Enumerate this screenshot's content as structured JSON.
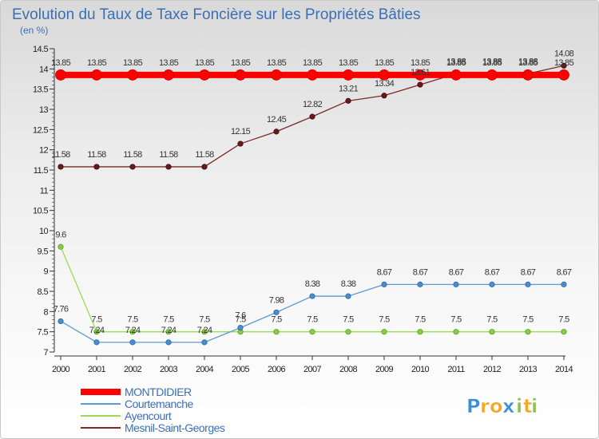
{
  "chart_data": {
    "type": "line",
    "title": "Evolution du Taux de Taxe Foncière sur les Propriétés Bâties",
    "unit_label": "(en %)",
    "xlabel": "",
    "ylabel": "",
    "ylim": [
      7,
      14.5
    ],
    "y_ticks": [
      "7",
      "7.5",
      "8",
      "8.5",
      "9",
      "9.5",
      "10",
      "10.5",
      "11",
      "11.5",
      "12",
      "12.5",
      "13",
      "13.5",
      "14",
      "14.5"
    ],
    "x": [
      "2000",
      "2001",
      "2002",
      "2003",
      "2004",
      "2005",
      "2006",
      "2007",
      "2008",
      "2009",
      "2010",
      "2011",
      "2012",
      "2013",
      "2014"
    ],
    "grid": false,
    "series": [
      {
        "name": "MONTDIDIER",
        "color": "#ff0000",
        "values": [
          13.85,
          13.85,
          13.85,
          13.85,
          13.85,
          13.85,
          13.85,
          13.85,
          13.85,
          13.85,
          13.85,
          13.85,
          13.85,
          13.85,
          13.85
        ],
        "labels": [
          "13.85",
          "13.85",
          "13.85",
          "13.85",
          "13.85",
          "13.85",
          "13.85",
          "13.85",
          "13.85",
          "13.85",
          "13.85",
          "13.85",
          "13.85",
          "13.85",
          "13.85"
        ]
      },
      {
        "name": "Courtemanche",
        "color": "#5a9bd5",
        "values": [
          7.76,
          7.24,
          7.24,
          7.24,
          7.24,
          7.6,
          7.98,
          8.38,
          8.38,
          8.67,
          8.67,
          8.67,
          8.67,
          8.67,
          8.67
        ],
        "labels": [
          "7.76",
          "7.24",
          "7.24",
          "7.24",
          "7.24",
          "7.6",
          "7.98",
          "8.38",
          "8.38",
          "8.67",
          "8.67",
          "8.67",
          "8.67",
          "8.67",
          "8.67"
        ]
      },
      {
        "name": "Ayencourt",
        "color": "#99dd55",
        "values": [
          9.6,
          7.5,
          7.5,
          7.5,
          7.5,
          7.5,
          7.5,
          7.5,
          7.5,
          7.5,
          7.5,
          7.5,
          7.5,
          7.5,
          7.5
        ],
        "labels": [
          "9.6",
          "7.5",
          "7.5",
          "7.5",
          "7.5",
          "7.5",
          "7.5",
          "7.5",
          "7.5",
          "7.5",
          "7.5",
          "7.5",
          "7.5",
          "7.5",
          "7.5"
        ]
      },
      {
        "name": "Mesnil-Saint-Georges",
        "color": "#7a2a2a",
        "values": [
          11.58,
          11.58,
          11.58,
          11.58,
          11.58,
          12.15,
          12.45,
          12.82,
          13.21,
          13.34,
          13.61,
          13.88,
          13.88,
          13.88,
          14.08
        ],
        "labels": [
          "11.58",
          "11.58",
          "11.58",
          "11.58",
          "11.58",
          "12.15",
          "12.45",
          "12.82",
          "13.21",
          "13.34",
          "13.61",
          "13.88",
          "13.88",
          "13.88",
          "14.08"
        ]
      }
    ],
    "legend": "bottom-left"
  },
  "logo": {
    "text": "Proxiti",
    "letters": [
      "P",
      "r",
      "o",
      "x",
      "i",
      "t",
      "i"
    ],
    "colors": [
      "#3b8fd8",
      "#f5a623",
      "#f5a623",
      "#3b8fd8",
      "#8bc34a",
      "#f5a623",
      "#8bc34a"
    ]
  }
}
